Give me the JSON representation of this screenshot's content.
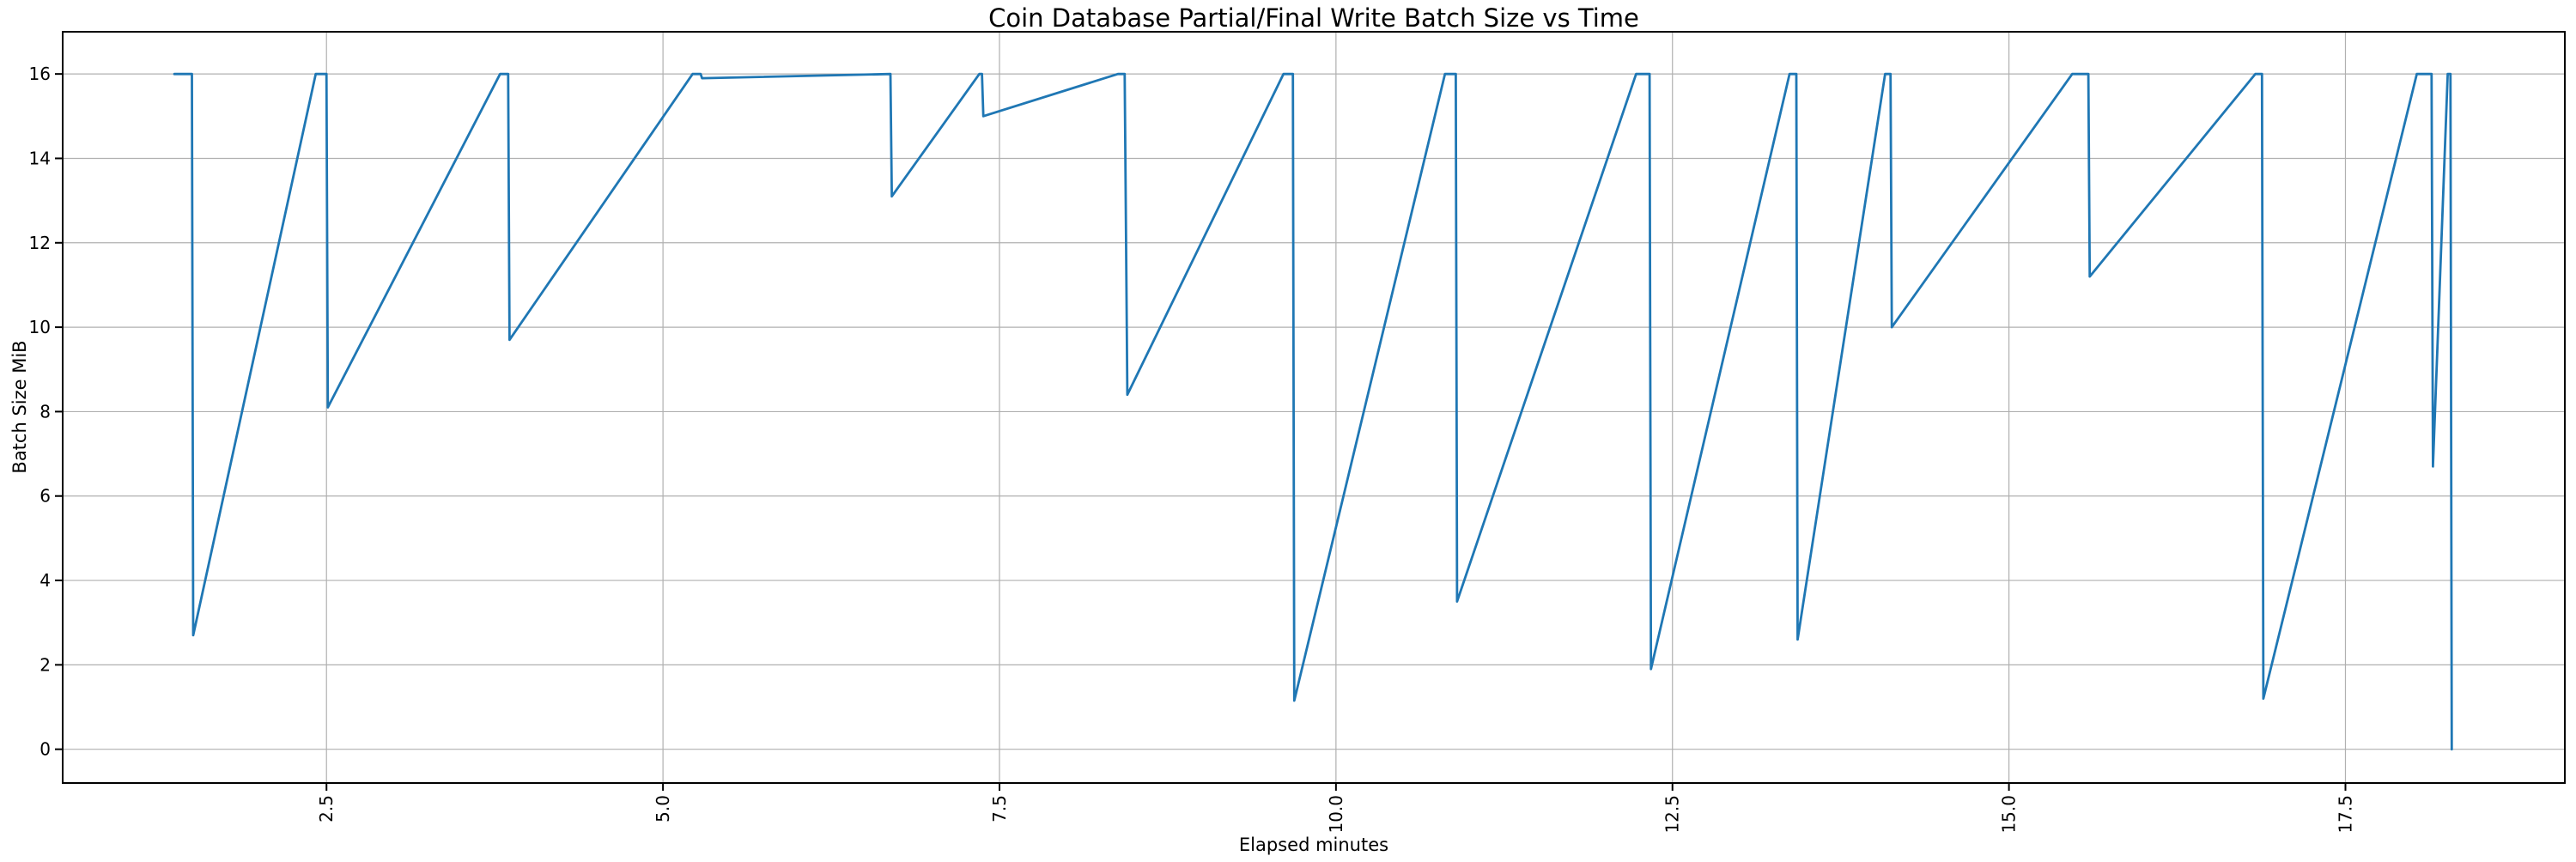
{
  "chart_data": {
    "type": "line",
    "title": "Coin Database Partial/Final Write Batch Size vs Time",
    "xlabel": "Elapsed minutes",
    "ylabel": "Batch Size MiB",
    "x_tick_values": [
      2.5,
      5.0,
      7.5,
      10.0,
      12.5,
      15.0,
      17.5
    ],
    "x_tick_labels": [
      "2.5",
      "5.0",
      "7.5",
      "10.0",
      "12.5",
      "15.0",
      "17.5"
    ],
    "x_tick_rotation_deg": -90,
    "y_tick_values": [
      0,
      2,
      4,
      6,
      8,
      10,
      12,
      14,
      16
    ],
    "y_tick_labels": [
      "0",
      "2",
      "4",
      "6",
      "8",
      "10",
      "12",
      "14",
      "16"
    ],
    "xlim": [
      0.54,
      19.13
    ],
    "ylim": [
      -0.8,
      17.0
    ],
    "grid": "on",
    "legend": "none",
    "line_color": "#1f77b4",
    "grid_color": "#b0b0b0",
    "spine_color": "#000000",
    "series": [
      {
        "name": "write-batch-size",
        "points": [
          [
            1.37,
            16.0
          ],
          [
            1.5,
            16.0
          ],
          [
            1.51,
            2.7
          ],
          [
            2.42,
            16.0
          ],
          [
            2.5,
            16.0
          ],
          [
            2.51,
            8.1
          ],
          [
            3.79,
            16.0
          ],
          [
            3.85,
            16.0
          ],
          [
            3.86,
            9.7
          ],
          [
            5.22,
            16.0
          ],
          [
            5.28,
            16.0
          ],
          [
            5.29,
            15.9
          ],
          [
            6.69,
            16.0
          ],
          [
            6.7,
            13.1
          ],
          [
            7.35,
            16.0
          ],
          [
            7.37,
            16.0
          ],
          [
            7.38,
            15.0
          ],
          [
            8.38,
            16.0
          ],
          [
            8.43,
            16.0
          ],
          [
            8.45,
            8.4
          ],
          [
            9.61,
            16.0
          ],
          [
            9.68,
            16.0
          ],
          [
            9.69,
            1.15
          ],
          [
            10.81,
            16.0
          ],
          [
            10.89,
            16.0
          ],
          [
            10.9,
            3.5
          ],
          [
            12.23,
            16.0
          ],
          [
            12.33,
            16.0
          ],
          [
            12.34,
            1.9
          ],
          [
            13.37,
            16.0
          ],
          [
            13.42,
            16.0
          ],
          [
            13.43,
            2.6
          ],
          [
            14.08,
            16.0
          ],
          [
            14.12,
            16.0
          ],
          [
            14.13,
            10.0
          ],
          [
            15.47,
            16.0
          ],
          [
            15.59,
            16.0
          ],
          [
            15.6,
            11.2
          ],
          [
            16.83,
            16.0
          ],
          [
            16.88,
            16.0
          ],
          [
            16.89,
            1.2
          ],
          [
            18.03,
            16.0
          ],
          [
            18.14,
            16.0
          ],
          [
            18.15,
            6.7
          ],
          [
            18.26,
            16.0
          ],
          [
            18.28,
            16.0
          ],
          [
            18.29,
            0.0
          ]
        ]
      }
    ]
  }
}
